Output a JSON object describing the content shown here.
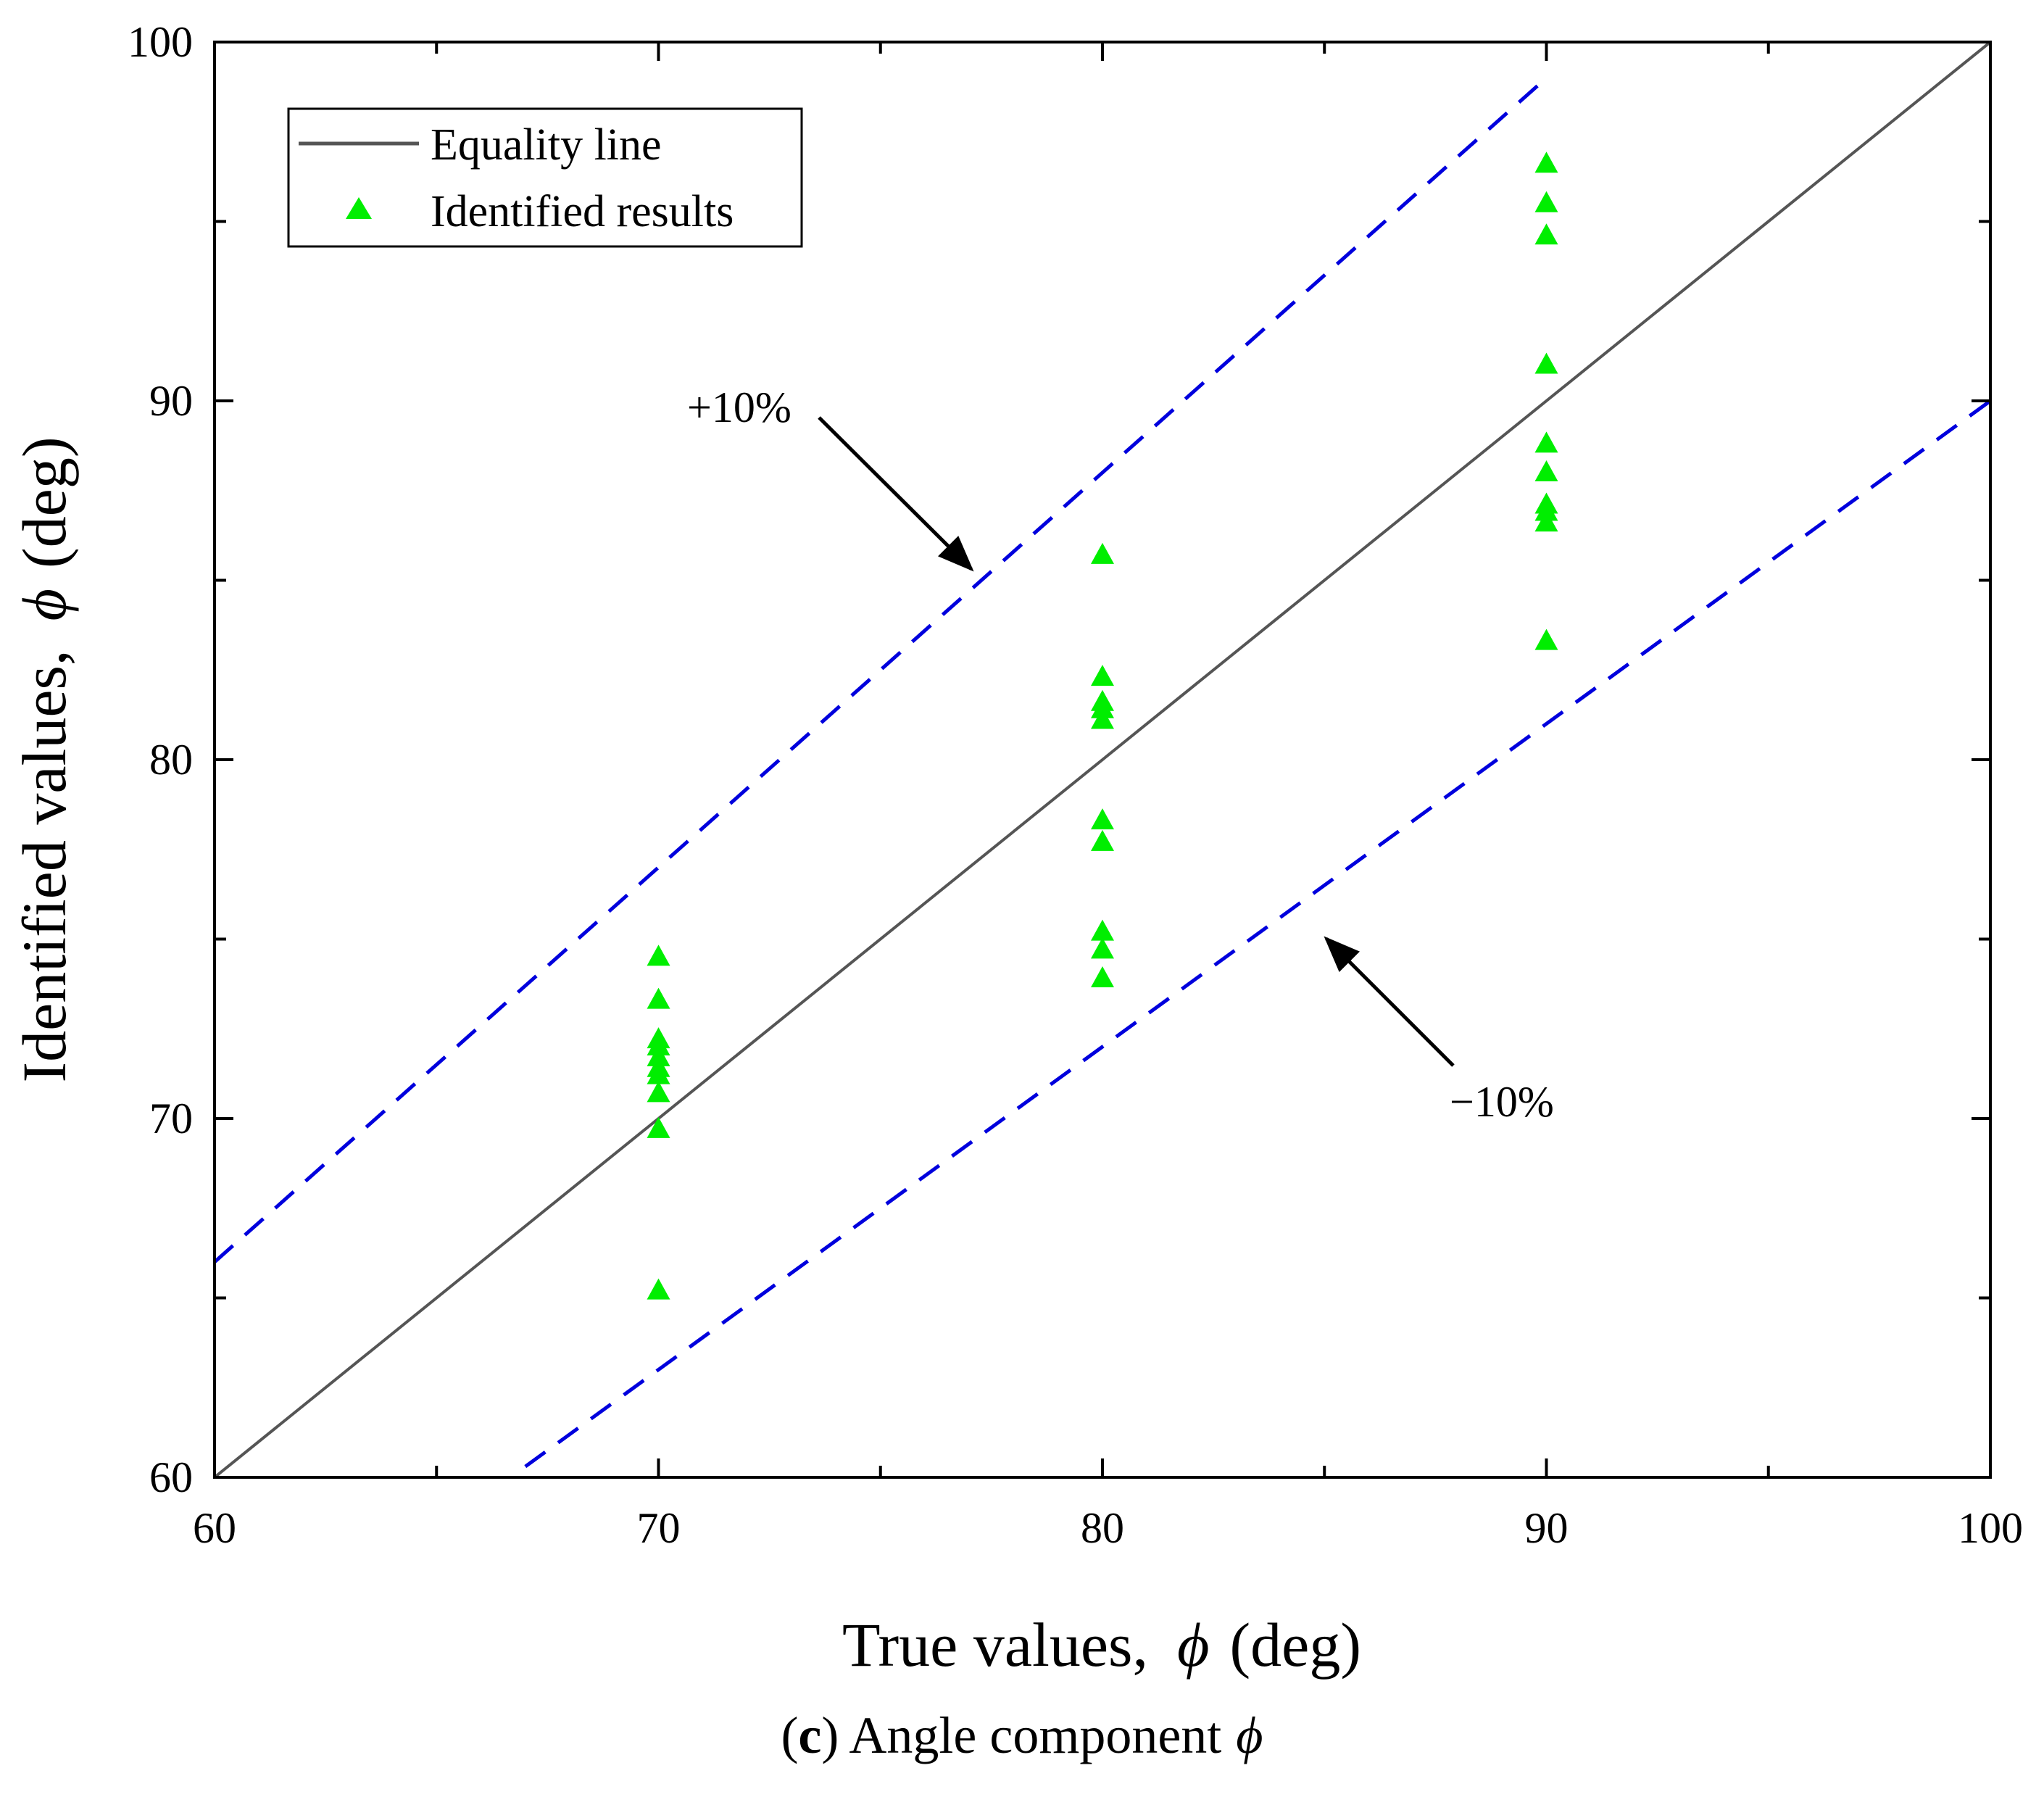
{
  "chart_data": {
    "type": "scatter",
    "xlabel": "True values,",
    "ylabel": "Identified values,",
    "axis_symbol": "ϕ",
    "axis_unit": "(deg)",
    "xlim": [
      60,
      100
    ],
    "ylim": [
      60,
      100
    ],
    "xticks": [
      60,
      70,
      80,
      90,
      100
    ],
    "yticks": [
      60,
      70,
      80,
      90,
      100
    ],
    "grid": false,
    "legend": {
      "position": "top-left",
      "entries": [
        "Equality line",
        "Identified results"
      ]
    },
    "series": [
      {
        "name": "Equality line",
        "kind": "line",
        "style": "solid",
        "color": "#555555",
        "x": [
          60,
          100
        ],
        "y": [
          60,
          100
        ]
      },
      {
        "name": "+10% bound",
        "kind": "line",
        "style": "dashed",
        "color": "#0000dd",
        "x": [
          60,
          90
        ],
        "y": [
          66,
          99
        ]
      },
      {
        "name": "-10% bound",
        "kind": "line",
        "style": "dashed",
        "color": "#0000dd",
        "x": [
          67,
          100
        ],
        "y": [
          60.3,
          90
        ]
      },
      {
        "name": "Identified results",
        "kind": "scatter",
        "marker": "triangle",
        "color": "#00ee00",
        "x": [
          70,
          70,
          70,
          70,
          70,
          70,
          70,
          70,
          70,
          70,
          80,
          80,
          80,
          80,
          80,
          80,
          80,
          80,
          80,
          80,
          90,
          90,
          90,
          90,
          90,
          90,
          90,
          90,
          90,
          90
        ],
        "y": [
          74.5,
          73.3,
          72.0,
          71.7,
          71.2,
          70.7,
          69.7,
          65.2,
          71.4,
          72.2,
          85.7,
          82.3,
          81.6,
          81.1,
          78.3,
          77.7,
          75.2,
          74.7,
          73.9,
          81.4,
          96.6,
          95.5,
          94.6,
          91.0,
          88.8,
          88.0,
          87.1,
          86.6,
          83.3,
          86.9
        ]
      }
    ],
    "annotations": [
      {
        "text": "+10%",
        "arrow_to": [
          77.2,
          85.0
        ]
      },
      {
        "text": "−10%",
        "arrow_to": [
          84.9,
          75.3
        ]
      }
    ],
    "caption": {
      "letter": "c",
      "text": "Angle component",
      "symbol": "ϕ"
    }
  }
}
